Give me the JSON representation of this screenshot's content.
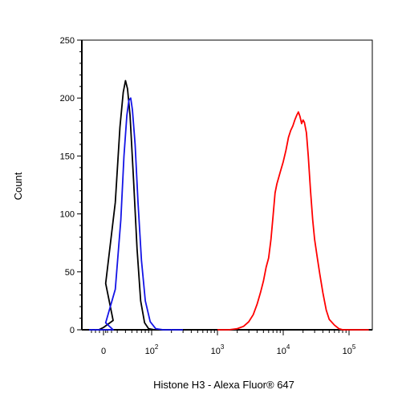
{
  "chart_data": {
    "type": "line",
    "title": "",
    "xlabel": "Histone H3 - Alexa Fluor® 647",
    "ylabel": "Count",
    "x_scale": "biexponential (log)",
    "ylim": [
      0,
      250
    ],
    "y_ticks": [
      0,
      50,
      100,
      150,
      200,
      250
    ],
    "x_ticks": [
      {
        "label": "0"
      },
      {
        "base": "10",
        "exp": "2"
      },
      {
        "base": "10",
        "exp": "3"
      },
      {
        "base": "10",
        "exp": "4"
      },
      {
        "base": "10",
        "exp": "5"
      }
    ],
    "grid": false,
    "legend": "none",
    "series": [
      {
        "color": "#000000",
        "points": [
          [
            -60,
            0
          ],
          [
            -20,
            0
          ],
          [
            0,
            2
          ],
          [
            10,
            8
          ],
          [
            20,
            40
          ],
          [
            28,
            110
          ],
          [
            33,
            175
          ],
          [
            37,
            205
          ],
          [
            40,
            215
          ],
          [
            43,
            208
          ],
          [
            47,
            185
          ],
          [
            53,
            130
          ],
          [
            60,
            70
          ],
          [
            68,
            25
          ],
          [
            78,
            6
          ],
          [
            90,
            1
          ],
          [
            110,
            0
          ],
          [
            200,
            0
          ]
        ]
      },
      {
        "color": "#1414e6",
        "points": [
          [
            -60,
            0
          ],
          [
            10,
            0
          ],
          [
            20,
            6
          ],
          [
            28,
            35
          ],
          [
            34,
            95
          ],
          [
            38,
            150
          ],
          [
            42,
            185
          ],
          [
            45,
            198
          ],
          [
            48,
            200
          ],
          [
            51,
            190
          ],
          [
            56,
            160
          ],
          [
            62,
            110
          ],
          [
            70,
            60
          ],
          [
            80,
            25
          ],
          [
            95,
            7
          ],
          [
            115,
            1
          ],
          [
            150,
            0
          ],
          [
            300,
            0
          ]
        ]
      },
      {
        "color": "#ff0000",
        "points": [
          [
            1000,
            0
          ],
          [
            1500,
            0
          ],
          [
            2000,
            1
          ],
          [
            2500,
            3
          ],
          [
            3000,
            7
          ],
          [
            3500,
            13
          ],
          [
            4000,
            22
          ],
          [
            4500,
            32
          ],
          [
            5000,
            42
          ],
          [
            5500,
            54
          ],
          [
            6000,
            62
          ],
          [
            6500,
            78
          ],
          [
            7000,
            98
          ],
          [
            7500,
            118
          ],
          [
            8000,
            126
          ],
          [
            8500,
            131
          ],
          [
            9000,
            136
          ],
          [
            10000,
            145
          ],
          [
            11000,
            155
          ],
          [
            12000,
            166
          ],
          [
            13000,
            172
          ],
          [
            14000,
            176
          ],
          [
            15000,
            181
          ],
          [
            16000,
            185
          ],
          [
            17000,
            188
          ],
          [
            18000,
            184
          ],
          [
            19000,
            178
          ],
          [
            20000,
            181
          ],
          [
            21000,
            179
          ],
          [
            22500,
            170
          ],
          [
            24000,
            150
          ],
          [
            26000,
            120
          ],
          [
            28000,
            95
          ],
          [
            30000,
            78
          ],
          [
            33000,
            62
          ],
          [
            36000,
            48
          ],
          [
            40000,
            32
          ],
          [
            45000,
            17
          ],
          [
            50000,
            9
          ],
          [
            60000,
            4
          ],
          [
            70000,
            1
          ],
          [
            80000,
            0
          ],
          [
            100000,
            0
          ],
          [
            200000,
            0
          ]
        ]
      }
    ]
  }
}
